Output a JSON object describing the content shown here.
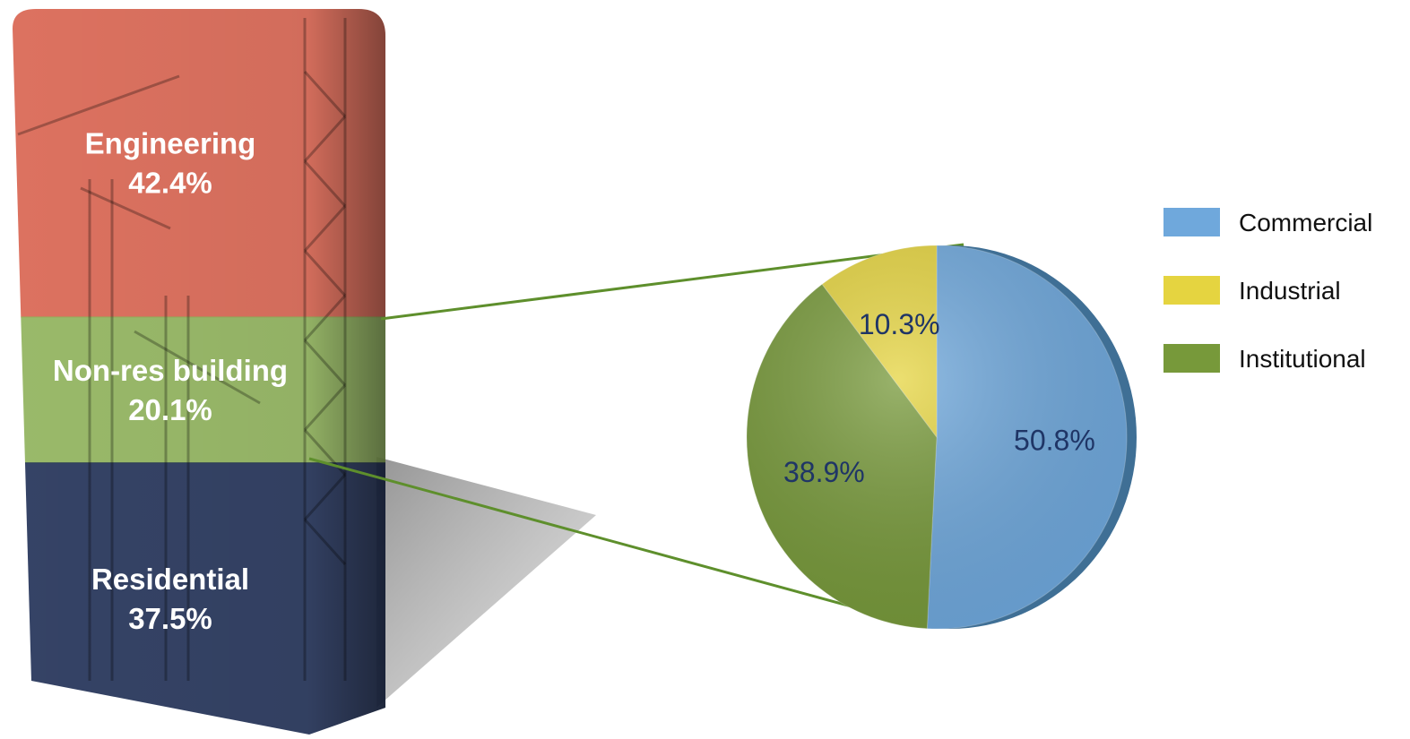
{
  "chart_data": [
    {
      "type": "bar",
      "stacked": true,
      "series": [
        {
          "name": "Engineering",
          "value": 42.4,
          "value_label": "42.4%",
          "color": "#d9634f"
        },
        {
          "name": "Non-res building",
          "value": 20.1,
          "value_label": "20.1%",
          "color": "#8fb25a"
        },
        {
          "name": "Residential",
          "value": 37.5,
          "value_label": "37.5%",
          "color": "#1f2f55"
        }
      ]
    },
    {
      "type": "pie",
      "breakdown_of": "Non-res building",
      "slices": [
        {
          "name": "Commercial",
          "value": 50.8,
          "value_label": "50.8%",
          "color": "#6fa8dc"
        },
        {
          "name": "Industrial",
          "value": 10.3,
          "value_label": "10.3%",
          "color": "#e5d440"
        },
        {
          "name": "Institutional",
          "value": 38.9,
          "value_label": "38.9%",
          "color": "#77993a"
        }
      ],
      "legend": {
        "position": "right",
        "items": [
          "Commercial",
          "Industrial",
          "Institutional"
        ]
      }
    }
  ]
}
